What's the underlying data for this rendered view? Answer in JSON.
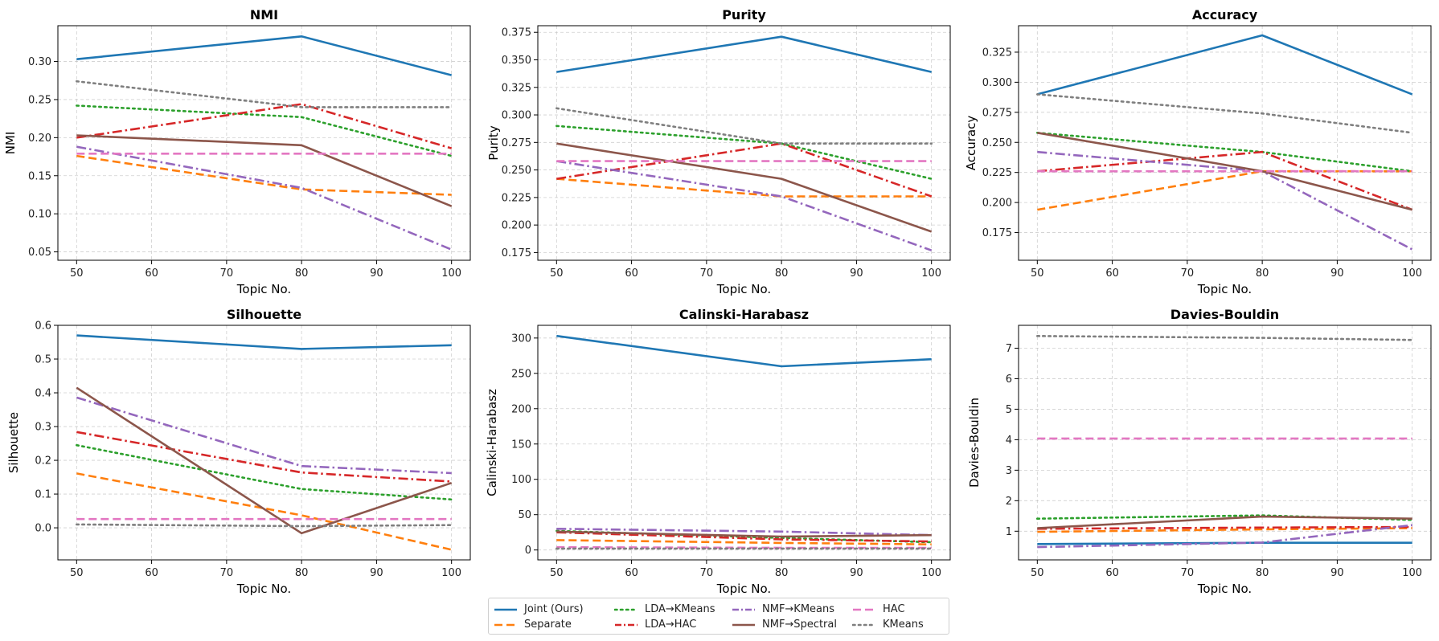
{
  "figure": {
    "series_styles": {
      "Joint (Ours)": {
        "color": "#1f77b4",
        "dash": "solid"
      },
      "Separate": {
        "color": "#ff7f0e",
        "dash": "dashed"
      },
      "LDA→KMeans": {
        "color": "#2ca02c",
        "dash": "dotted"
      },
      "LDA→HAC": {
        "color": "#d62728",
        "dash": "dashdot"
      },
      "NMF→KMeans": {
        "color": "#9467bd",
        "dash": "dashdot"
      },
      "NMF→Spectral": {
        "color": "#8c564b",
        "dash": "solid"
      },
      "HAC": {
        "color": "#e377c2",
        "dash": "dashed"
      },
      "KMeans": {
        "color": "#7f7f7f",
        "dash": "dotted"
      }
    },
    "legend": [
      "Joint (Ours)",
      "Separate",
      "LDA→KMeans",
      "LDA→HAC",
      "NMF→KMeans",
      "NMF→Spectral",
      "HAC",
      "KMeans"
    ]
  },
  "chart_data": [
    {
      "type": "line",
      "title": "NMI",
      "xlabel": "Topic No.",
      "ylabel": "NMI",
      "x": [
        50,
        80,
        100
      ],
      "xlim": [
        47.5,
        102.5
      ],
      "ylim": [
        0.039,
        0.347
      ],
      "xticks": [
        "50",
        "60",
        "70",
        "80",
        "90",
        "100"
      ],
      "yticks": [
        "0.05",
        "0.10",
        "0.15",
        "0.20",
        "0.25",
        "0.30"
      ],
      "grid": true,
      "series": [
        {
          "name": "Joint (Ours)",
          "values": [
            0.303,
            0.333,
            0.282
          ]
        },
        {
          "name": "Separate",
          "values": [
            0.176,
            0.132,
            0.125
          ]
        },
        {
          "name": "LDA→KMeans",
          "values": [
            0.242,
            0.227,
            0.176
          ]
        },
        {
          "name": "LDA→HAC",
          "values": [
            0.2,
            0.244,
            0.186
          ]
        },
        {
          "name": "NMF→KMeans",
          "values": [
            0.188,
            0.134,
            0.053
          ]
        },
        {
          "name": "NMF→Spectral",
          "values": [
            0.203,
            0.19,
            0.11
          ]
        },
        {
          "name": "HAC",
          "values": [
            0.179,
            0.179,
            0.179
          ]
        },
        {
          "name": "KMeans",
          "values": [
            0.274,
            0.24,
            0.24
          ]
        }
      ]
    },
    {
      "type": "line",
      "title": "Purity",
      "xlabel": "Topic No.",
      "ylabel": "Purity",
      "x": [
        50,
        80,
        100
      ],
      "xlim": [
        47.5,
        102.5
      ],
      "ylim": [
        0.168,
        0.381
      ],
      "xticks": [
        "50",
        "60",
        "70",
        "80",
        "90",
        "100"
      ],
      "yticks": [
        "0.175",
        "0.200",
        "0.225",
        "0.250",
        "0.275",
        "0.300",
        "0.325",
        "0.350",
        "0.375"
      ],
      "grid": true,
      "series": [
        {
          "name": "Joint (Ours)",
          "values": [
            0.339,
            0.371,
            0.339
          ]
        },
        {
          "name": "Separate",
          "values": [
            0.242,
            0.226,
            0.226
          ]
        },
        {
          "name": "LDA→KMeans",
          "values": [
            0.29,
            0.274,
            0.242
          ]
        },
        {
          "name": "LDA→HAC",
          "values": [
            0.242,
            0.274,
            0.226
          ]
        },
        {
          "name": "NMF→KMeans",
          "values": [
            0.258,
            0.226,
            0.177
          ]
        },
        {
          "name": "NMF→Spectral",
          "values": [
            0.274,
            0.242,
            0.194
          ]
        },
        {
          "name": "HAC",
          "values": [
            0.258,
            0.258,
            0.258
          ]
        },
        {
          "name": "KMeans",
          "values": [
            0.306,
            0.274,
            0.274
          ]
        }
      ]
    },
    {
      "type": "line",
      "title": "Accuracy",
      "xlabel": "Topic No.",
      "ylabel": "Accuracy",
      "x": [
        50,
        80,
        100
      ],
      "xlim": [
        47.5,
        102.5
      ],
      "ylim": [
        0.152,
        0.347
      ],
      "xticks": [
        "50",
        "60",
        "70",
        "80",
        "90",
        "100"
      ],
      "yticks": [
        "0.175",
        "0.200",
        "0.225",
        "0.250",
        "0.275",
        "0.300",
        "0.325"
      ],
      "grid": true,
      "series": [
        {
          "name": "Joint (Ours)",
          "values": [
            0.29,
            0.339,
            0.29
          ]
        },
        {
          "name": "Separate",
          "values": [
            0.194,
            0.226,
            0.226
          ]
        },
        {
          "name": "LDA→KMeans",
          "values": [
            0.258,
            0.242,
            0.226
          ]
        },
        {
          "name": "LDA→HAC",
          "values": [
            0.226,
            0.242,
            0.194
          ]
        },
        {
          "name": "NMF→KMeans",
          "values": [
            0.242,
            0.226,
            0.161
          ]
        },
        {
          "name": "NMF→Spectral",
          "values": [
            0.258,
            0.226,
            0.194
          ]
        },
        {
          "name": "HAC",
          "values": [
            0.226,
            0.226,
            0.226
          ]
        },
        {
          "name": "KMeans",
          "values": [
            0.29,
            0.274,
            0.258
          ]
        }
      ]
    },
    {
      "type": "line",
      "title": "Silhouette",
      "xlabel": "Topic No.",
      "ylabel": "Silhouette",
      "x": [
        50,
        80,
        100
      ],
      "xlim": [
        47.5,
        102.5
      ],
      "ylim": [
        -0.095,
        0.6
      ],
      "xticks": [
        "50",
        "60",
        "70",
        "80",
        "90",
        "100"
      ],
      "yticks": [
        "0.0",
        "0.1",
        "0.2",
        "0.3",
        "0.4",
        "0.5",
        "0.6"
      ],
      "grid": true,
      "series": [
        {
          "name": "Joint (Ours)",
          "values": [
            0.57,
            0.53,
            0.541
          ]
        },
        {
          "name": "Separate",
          "values": [
            0.161,
            0.037,
            -0.065
          ]
        },
        {
          "name": "LDA→KMeans",
          "values": [
            0.245,
            0.115,
            0.084
          ]
        },
        {
          "name": "LDA→HAC",
          "values": [
            0.284,
            0.164,
            0.137
          ]
        },
        {
          "name": "NMF→KMeans",
          "values": [
            0.386,
            0.183,
            0.162
          ]
        },
        {
          "name": "NMF→Spectral",
          "values": [
            0.415,
            -0.016,
            0.133
          ]
        },
        {
          "name": "HAC",
          "values": [
            0.026,
            0.026,
            0.026
          ]
        },
        {
          "name": "KMeans",
          "values": [
            0.01,
            0.005,
            0.008
          ]
        }
      ]
    },
    {
      "type": "line",
      "title": "Calinski-Harabasz",
      "xlabel": "Topic No.",
      "ylabel": "Calinski-Harabasz",
      "x": [
        50,
        80,
        100
      ],
      "xlim": [
        47.5,
        102.5
      ],
      "ylim": [
        -14,
        318
      ],
      "xticks": [
        "50",
        "60",
        "70",
        "80",
        "90",
        "100"
      ],
      "yticks": [
        "0",
        "50",
        "100",
        "150",
        "200",
        "250",
        "300"
      ],
      "grid": true,
      "series": [
        {
          "name": "Joint (Ours)",
          "values": [
            303,
            260,
            270
          ]
        },
        {
          "name": "Separate",
          "values": [
            14,
            10,
            8
          ]
        },
        {
          "name": "LDA→KMeans",
          "values": [
            27,
            17,
            11
          ]
        },
        {
          "name": "LDA→HAC",
          "values": [
            25,
            15,
            12
          ]
        },
        {
          "name": "NMF→KMeans",
          "values": [
            30,
            26,
            21
          ]
        },
        {
          "name": "NMF→Spectral",
          "values": [
            26,
            19,
            21
          ]
        },
        {
          "name": "HAC",
          "values": [
            4,
            3,
            3
          ]
        },
        {
          "name": "KMeans",
          "values": [
            2,
            2,
            2
          ]
        }
      ]
    },
    {
      "type": "line",
      "title": "Davies-Bouldin",
      "xlabel": "Topic No.",
      "ylabel": "Davies-Bouldin",
      "x": [
        50,
        80,
        100
      ],
      "xlim": [
        47.5,
        102.5
      ],
      "ylim": [
        0.06,
        7.75
      ],
      "xticks": [
        "50",
        "60",
        "70",
        "80",
        "90",
        "100"
      ],
      "yticks": [
        "1",
        "2",
        "3",
        "4",
        "5",
        "6",
        "7"
      ],
      "grid": true,
      "series": [
        {
          "name": "Joint (Ours)",
          "values": [
            0.58,
            0.62,
            0.62
          ]
        },
        {
          "name": "Separate",
          "values": [
            0.98,
            1.06,
            1.1
          ]
        },
        {
          "name": "LDA→KMeans",
          "values": [
            1.41,
            1.52,
            1.37
          ]
        },
        {
          "name": "LDA→HAC",
          "values": [
            1.08,
            1.12,
            1.14
          ]
        },
        {
          "name": "NMF→KMeans",
          "values": [
            0.48,
            0.63,
            1.2
          ]
        },
        {
          "name": "NMF→Spectral",
          "values": [
            1.1,
            1.48,
            1.41
          ]
        },
        {
          "name": "HAC",
          "values": [
            4.04,
            4.04,
            4.04
          ]
        },
        {
          "name": "KMeans",
          "values": [
            7.4,
            7.34,
            7.27
          ]
        }
      ]
    }
  ]
}
